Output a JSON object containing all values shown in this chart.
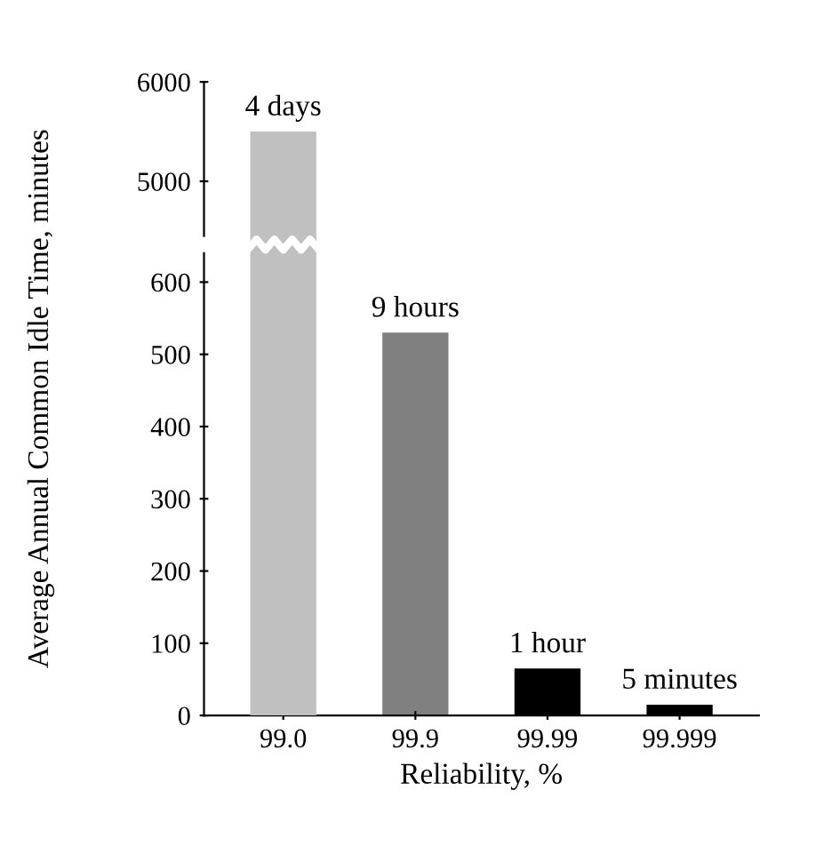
{
  "chart_data": [
    {
      "type": "bar",
      "ylabel": "Average Annual Common Idle Time, minutes",
      "categories": [
        "99.0",
        "99.9",
        "99.99",
        "99.999"
      ],
      "values": [
        5500,
        null,
        null,
        null
      ],
      "colors": [
        "#c0c0c0",
        "#808080",
        "#000000",
        "#000000"
      ],
      "annotations": [
        {
          "text": "4 days",
          "x": "99.0",
          "y": 5500
        }
      ],
      "ylim": [
        4450,
        6000
      ],
      "yticks": [
        5000,
        6000
      ],
      "tick_labels": "y",
      "grid": false
    },
    {
      "type": "bar",
      "xlabel": "Reliability, %",
      "categories": [
        "99.0",
        "99.9",
        "99.99",
        "99.999"
      ],
      "values": [
        null,
        530,
        65,
        15
      ],
      "colors": [
        "#c0c0c0",
        "#808080",
        "#000000",
        "#000000"
      ],
      "annotations": [
        {
          "text": "9 hours",
          "x": "99.9",
          "y": 530
        },
        {
          "text": "1 hour",
          "x": "99.99",
          "y": 65
        },
        {
          "text": "5 minutes",
          "x": "99.999",
          "y": 15
        }
      ],
      "ylim": [
        0,
        640
      ],
      "yticks": [
        0,
        100,
        200,
        300,
        400,
        500,
        600
      ],
      "grid": false
    }
  ]
}
